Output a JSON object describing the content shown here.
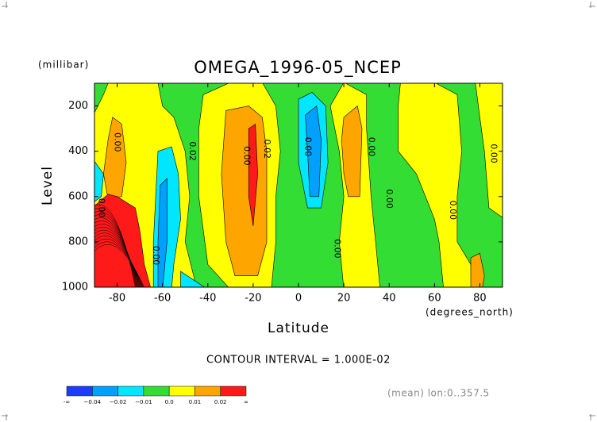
{
  "chart_data": {
    "type": "contour",
    "title": "OMEGA_1996-05_NCEP",
    "y_unit": "(millibar)",
    "y_label": "Level",
    "x_label": "Latitude",
    "x_unit": "(degrees_north)",
    "xlim": [
      -90,
      90
    ],
    "xticks": [
      -80,
      -60,
      -40,
      -20,
      0,
      20,
      40,
      60,
      80
    ],
    "ylim": [
      1000,
      100
    ],
    "yticks": [
      200,
      400,
      600,
      800,
      1000
    ],
    "colors": [
      "#1e3cff",
      "#00a0ff",
      "#00e6ff",
      "#33dd33",
      "#ffff00",
      "#ffa500",
      "#ff1a1a"
    ],
    "colorbar_ticks": [
      {
        "value": 0,
        "label": "-∞"
      },
      {
        "value": 1,
        "label": "−0.04"
      },
      {
        "value": 2,
        "label": "−0.02"
      },
      {
        "value": 3,
        "label": "−0.01"
      },
      {
        "value": 4,
        "label": "0.0"
      },
      {
        "value": 5,
        "label": "0.01"
      },
      {
        "value": 6,
        "label": "0.02"
      },
      {
        "value": 7,
        "label": "∞"
      }
    ],
    "contour_labels": [
      "0.00",
      "0.00",
      "0.00",
      "0.02",
      "0.00",
      "0.02",
      "0.00",
      "0.00",
      "0.00",
      "0.00",
      "0.00",
      "0.00"
    ],
    "annotation": "CONTOUR INTERVAL = 1.000E-02",
    "footnote": "(mean) lon:0..357.5"
  }
}
